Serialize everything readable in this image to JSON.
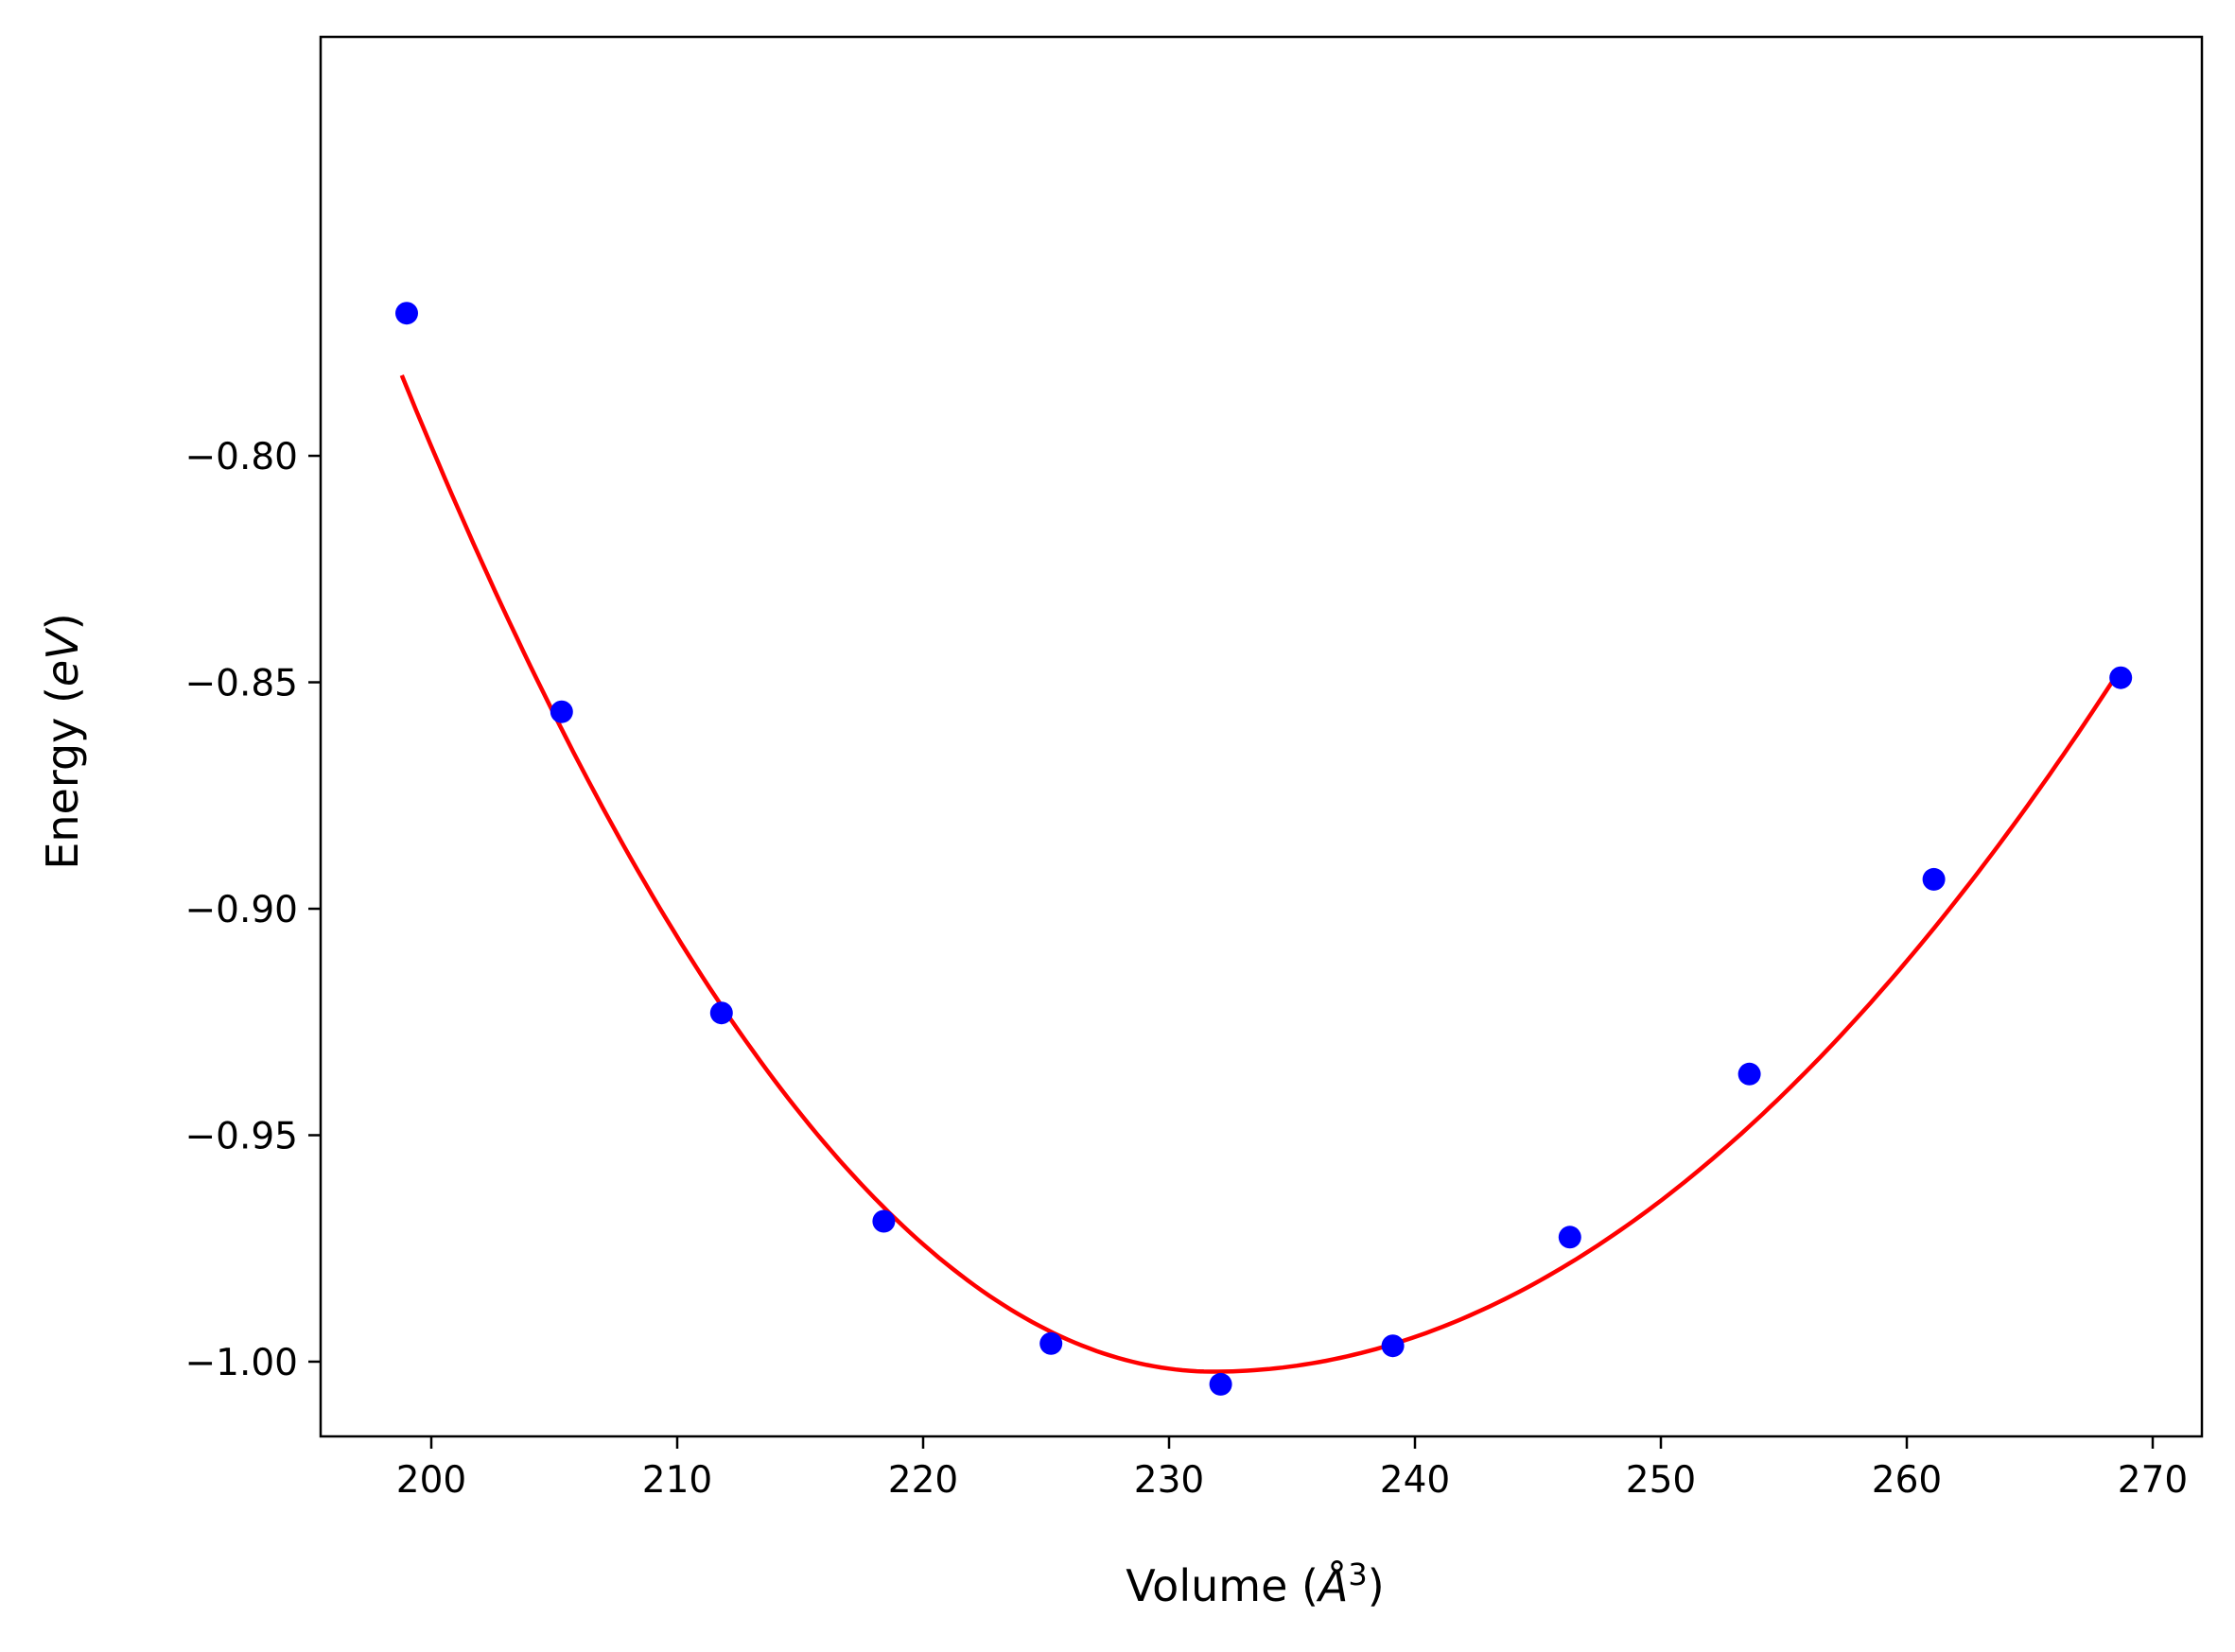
{
  "chart_data": {
    "type": "scatter",
    "title": "",
    "xlabel": "Volume (Å³)",
    "ylabel": "Energy (eV)",
    "xlabel_parts": {
      "pre": "Volume (",
      "symbol": "Å",
      "sup": "3",
      "post": ")"
    },
    "ylabel_parts": {
      "pre": "Energy (",
      "unit": "eV",
      "post": ")"
    },
    "xlim": [
      195.5,
      272.0
    ],
    "ylim": [
      -1.0165,
      -0.7075
    ],
    "xticks": [
      200,
      210,
      220,
      230,
      240,
      250,
      260,
      270
    ],
    "yticks": [
      -0.8,
      -0.85,
      -0.9,
      -0.95,
      -1.0
    ],
    "ytick_labels": [
      "−0.80",
      "−0.85",
      "−0.90",
      "−0.95",
      "−1.00"
    ],
    "grid": false,
    "legend": "none",
    "series": [
      {
        "kind": "scatter",
        "color": "#0000ff",
        "x": [
          199.0,
          205.3,
          211.8,
          218.4,
          225.2,
          232.1,
          239.1,
          246.3,
          253.6,
          261.1,
          268.7
        ],
        "y": [
          -0.7685,
          -0.8565,
          -0.923,
          -0.969,
          -0.996,
          -1.005,
          -0.9965,
          -0.9725,
          -0.9365,
          -0.8935,
          -0.849
        ]
      },
      {
        "kind": "line",
        "color": "#ff0000",
        "fit": {
          "model": "quadratic",
          "V0": 231.8,
          "E0": -1.0022,
          "coef_left": 0.000202,
          "coef_right": 0.000114
        },
        "x_range": [
          198.8,
          268.7
        ]
      }
    ]
  }
}
